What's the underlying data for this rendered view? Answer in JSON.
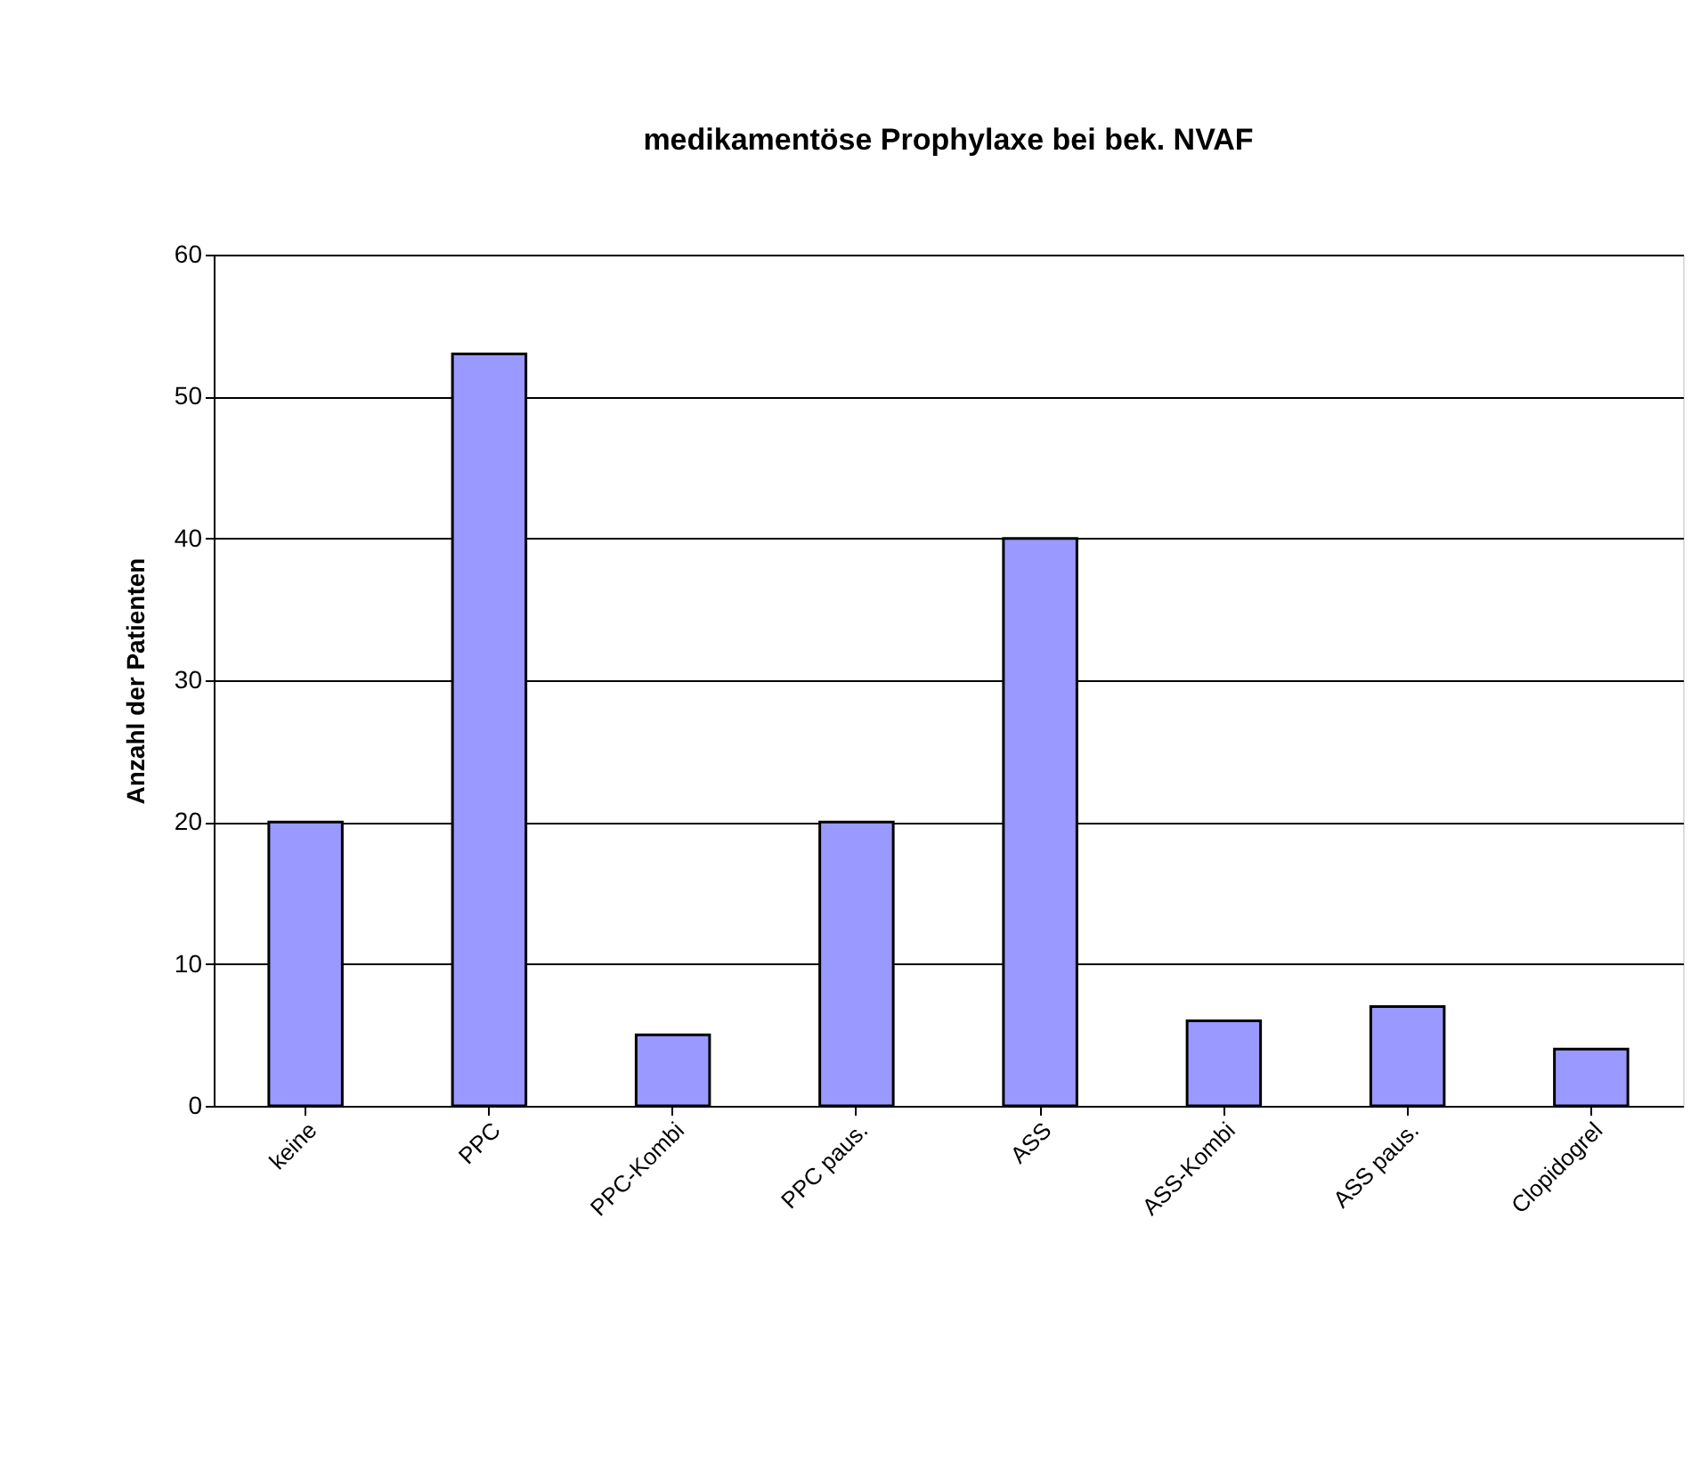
{
  "chart_data": {
    "type": "bar",
    "title": "medikamentöse Prophylaxe bei bek. NVAF",
    "ylabel": "Anzahl der Patienten",
    "categories": [
      "keine",
      "PPC",
      "PPC-Kombi",
      "PPC paus.",
      "ASS",
      "ASS-Kombi",
      "ASS paus.",
      "Clopidogrel"
    ],
    "values": [
      20,
      53,
      5,
      20,
      40,
      6,
      7,
      4
    ],
    "color": "#9999ff",
    "ylim": [
      0,
      60
    ],
    "yticks": [
      0,
      10,
      20,
      30,
      40,
      50,
      60
    ],
    "grid": "y"
  }
}
